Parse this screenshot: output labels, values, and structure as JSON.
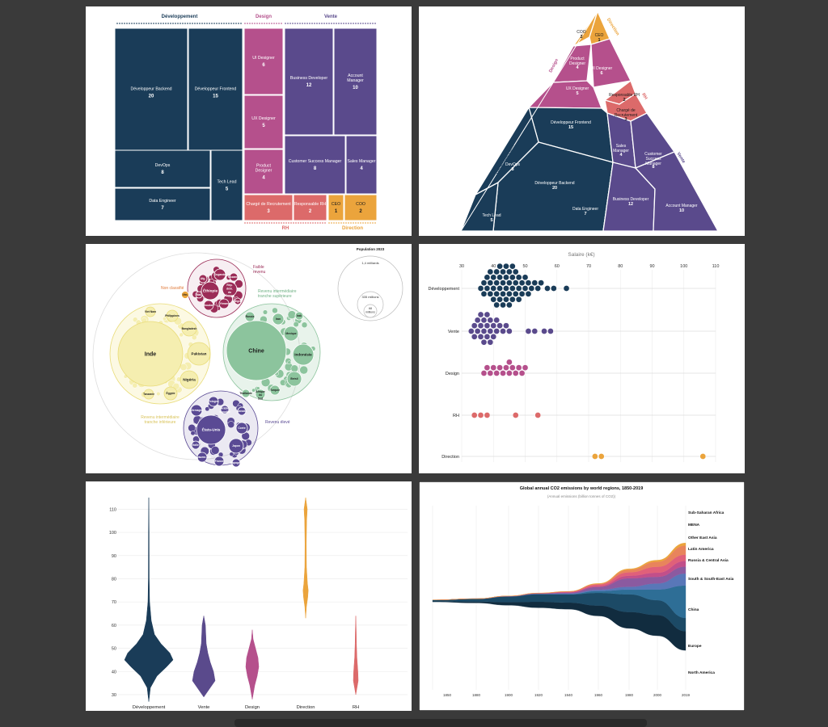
{
  "colors": {
    "dev": "#1a3c58",
    "design": "#b5508c",
    "vente": "#5a4a8c",
    "rh": "#dc6a6a",
    "direction": "#eba43c",
    "low": "#9b2c57",
    "lowmid": "#f5eeb0",
    "highmid": "#8cc49d",
    "high": "#5a4a94"
  },
  "charts": [
    {
      "type": "treemap",
      "groups": [
        {
          "label": "Développement",
          "key": "dev",
          "items": [
            {
              "name": "Développeur Backend",
              "value": 20
            },
            {
              "name": "Développeur Frontend",
              "value": 15
            },
            {
              "name": "DevOps",
              "value": 8
            },
            {
              "name": "Data Engineer",
              "value": 7
            },
            {
              "name": "Tech Lead",
              "value": 5
            }
          ]
        },
        {
          "label": "Design",
          "key": "design",
          "items": [
            {
              "name": "UI Designer",
              "value": 6
            },
            {
              "name": "UX Designer",
              "value": 5
            },
            {
              "name": "Product Designer",
              "value": 4
            }
          ]
        },
        {
          "label": "Vente",
          "key": "vente",
          "items": [
            {
              "name": "Business Developer",
              "value": 12
            },
            {
              "name": "Account Manager",
              "value": 10
            },
            {
              "name": "Customer Success Manager",
              "value": 8
            },
            {
              "name": "Sales Manager",
              "value": 4
            }
          ]
        },
        {
          "label": "RH",
          "key": "rh",
          "items": [
            {
              "name": "Chargé de Recrutement",
              "value": 3
            },
            {
              "name": "Responsable RH",
              "value": 2
            }
          ]
        },
        {
          "label": "Direction",
          "key": "direction",
          "items": [
            {
              "name": "CEO",
              "value": 1
            },
            {
              "name": "COO",
              "value": 2
            }
          ]
        }
      ]
    },
    {
      "type": "voronoi-treemap",
      "group_labels": [
        "Développement",
        "Design",
        "Vente",
        "RH",
        "Direction"
      ],
      "cells": [
        {
          "name": "COO",
          "value": 2,
          "key": "direction"
        },
        {
          "name": "CEO",
          "value": 1,
          "key": "direction"
        },
        {
          "name": "Product Designer",
          "value": 4,
          "key": "design"
        },
        {
          "name": "UI Designer",
          "value": 6,
          "key": "design"
        },
        {
          "name": "UX Designer",
          "value": 5,
          "key": "design"
        },
        {
          "name": "Responsable RH",
          "value": 2,
          "key": "rh"
        },
        {
          "name": "Chargé de Recrutement",
          "value": 3,
          "key": "rh"
        },
        {
          "name": "Développeur Frontend",
          "value": 15,
          "key": "dev"
        },
        {
          "name": "DevOps",
          "value": 8,
          "key": "dev"
        },
        {
          "name": "Développeur Backend",
          "value": 20,
          "key": "dev"
        },
        {
          "name": "Tech Lead",
          "value": 5,
          "key": "dev"
        },
        {
          "name": "Data Engineer",
          "value": 7,
          "key": "dev"
        },
        {
          "name": "Sales Manager",
          "value": 4,
          "key": "vente"
        },
        {
          "name": "Customer Success Manager",
          "value": 8,
          "key": "vente"
        },
        {
          "name": "Business Developer",
          "value": 12,
          "key": "vente"
        },
        {
          "name": "Account Manager",
          "value": 10,
          "key": "vente"
        }
      ]
    },
    {
      "type": "circle-packing",
      "legend_title": "Population 2023",
      "legend_values": [
        "1,4 milliards",
        "335 millions",
        "68 millions"
      ],
      "groups": [
        {
          "label": "Faible revenu",
          "key": "low",
          "countries": [
            "Éthiopie",
            "Rép. dém. du Congo",
            "Ouganda",
            "Soudan",
            "Yémen",
            "Afg.",
            "Mozamb.",
            "Niger",
            "Mali"
          ]
        },
        {
          "label": "Non classifié",
          "key": "direction",
          "countries": [
            "Vén."
          ]
        },
        {
          "label": "Revenu intermédiaire tranche inférieure",
          "key": "lowmid",
          "countries": [
            "Inde",
            "Pakistan",
            "Nigéria",
            "Bangladesh",
            "Égypte",
            "Philippines",
            "Viet Nam",
            "Tanzanie"
          ]
        },
        {
          "label": "Revenu intermédiaire tranche supérieure",
          "key": "highmid",
          "countries": [
            "Chine",
            "Indonésie",
            "Brésil",
            "Mexique",
            "Iran",
            "Turquie",
            "Thaïlande",
            "Afrique du Sud",
            "Russie",
            "Irak"
          ]
        },
        {
          "label": "Revenu élevé",
          "key": "high",
          "countries": [
            "États-Unis",
            "Japon",
            "Allemagne",
            "France",
            "Royaume-Uni",
            "Italie",
            "Corée",
            "Espagne",
            "Canada",
            "Pologne",
            "Arabie saoudite"
          ]
        }
      ]
    },
    {
      "type": "beeswarm",
      "title": "Salaire (k€)",
      "xlim": [
        30,
        110
      ],
      "ticks": [
        30,
        40,
        50,
        60,
        70,
        80,
        90,
        100,
        110
      ],
      "series": [
        {
          "name": "Développement",
          "key": "dev",
          "values": [
            36,
            37,
            37,
            38,
            38,
            39,
            39,
            39,
            40,
            40,
            40,
            41,
            41,
            41,
            41,
            42,
            42,
            42,
            42,
            43,
            43,
            43,
            43,
            44,
            44,
            44,
            44,
            45,
            45,
            45,
            45,
            46,
            46,
            46,
            46,
            47,
            47,
            47,
            48,
            48,
            48,
            49,
            49,
            50,
            50,
            51,
            51,
            52,
            53,
            54,
            55,
            57,
            59,
            63
          ]
        },
        {
          "name": "Vente",
          "key": "vente",
          "values": [
            33,
            34,
            34,
            35,
            35,
            36,
            36,
            36,
            37,
            37,
            37,
            38,
            38,
            38,
            39,
            39,
            39,
            40,
            40,
            41,
            41,
            42,
            43,
            44,
            45,
            51,
            53,
            56,
            58
          ]
        },
        {
          "name": "Design",
          "key": "design",
          "values": [
            37,
            38,
            39,
            40,
            41,
            42,
            43,
            44,
            45,
            45,
            46,
            47,
            48,
            49,
            50
          ]
        },
        {
          "name": "RH",
          "key": "rh",
          "values": [
            34,
            36,
            38,
            47,
            54
          ]
        },
        {
          "name": "Direction",
          "key": "direction",
          "values": [
            72,
            74,
            106
          ]
        }
      ]
    },
    {
      "type": "violin",
      "ylim": [
        30,
        115
      ],
      "ticks": [
        30,
        40,
        50,
        60,
        70,
        80,
        90,
        100,
        110
      ],
      "categories": [
        "Développement",
        "Vente",
        "Design",
        "Direction",
        "RH"
      ]
    },
    {
      "type": "area",
      "title": "Global annual CO2 emissions by world regions, 1850-2019",
      "subtitle": "(Annual emissions (billion tonnes of CO2))",
      "x_ticks": [
        "1850",
        "1880",
        "1900",
        "1920",
        "1940",
        "1960",
        "1980",
        "2000",
        "2019"
      ],
      "series": [
        {
          "name": "North America",
          "color": "#112c3f",
          "values": [
            0.2,
            0.4,
            1.0,
            1.9,
            2.1,
            3.3,
            5.2,
            6.6,
            6.1
          ]
        },
        {
          "name": "Europe",
          "color": "#1c4a66",
          "values": [
            0.4,
            0.9,
            1.8,
            2.4,
            2.6,
            4.0,
            5.6,
            4.7,
            4.2
          ]
        },
        {
          "name": "China",
          "color": "#2e6e96",
          "values": [
            0.0,
            0.0,
            0.0,
            0.02,
            0.06,
            0.6,
            1.5,
            3.4,
            10.3
          ]
        },
        {
          "name": "South & South-East Asia",
          "color": "#5977b8",
          "values": [
            0.0,
            0.02,
            0.05,
            0.1,
            0.2,
            0.4,
            0.9,
            1.9,
            3.8
          ]
        },
        {
          "name": "Russia & Central Asia",
          "color": "#8b5aa0",
          "values": [
            0.0,
            0.02,
            0.05,
            0.1,
            0.3,
            0.9,
            2.7,
            2.1,
            2.2
          ]
        },
        {
          "name": "Latin America",
          "color": "#c24f8a",
          "values": [
            0.0,
            0.01,
            0.03,
            0.07,
            0.1,
            0.3,
            0.8,
            1.3,
            1.8
          ]
        },
        {
          "name": "Other East Asia",
          "color": "#e0607a",
          "values": [
            0.0,
            0.0,
            0.01,
            0.05,
            0.2,
            0.5,
            1.1,
            1.9,
            2.0
          ]
        },
        {
          "name": "MENA",
          "color": "#e8845c",
          "values": [
            0.0,
            0.0,
            0.01,
            0.02,
            0.05,
            0.2,
            0.8,
            1.6,
            2.9
          ]
        },
        {
          "name": "Sub-Saharan Africa",
          "color": "#eba43c",
          "values": [
            0.0,
            0.0,
            0.01,
            0.02,
            0.05,
            0.1,
            0.3,
            0.5,
            0.8
          ]
        }
      ]
    }
  ]
}
